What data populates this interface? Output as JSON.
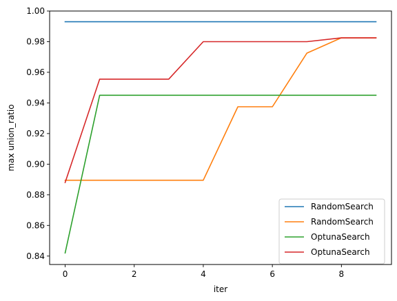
{
  "chart_data": {
    "type": "line",
    "title": "",
    "xlabel": "iter",
    "ylabel": "max union_ratio",
    "xlim": [
      -0.45,
      9.45
    ],
    "ylim": [
      0.8345,
      1.0
    ],
    "x_ticks": [
      0,
      2,
      4,
      6,
      8
    ],
    "y_ticks": [
      0.84,
      0.86,
      0.88,
      0.9,
      0.92,
      0.94,
      0.96,
      0.98,
      1.0
    ],
    "grid": false,
    "legend_position": "lower right",
    "x": [
      0,
      1,
      2,
      3,
      4,
      5,
      6,
      7,
      8,
      9
    ],
    "series": [
      {
        "name": "RandomSearch",
        "color": "#1f77b4",
        "values": [
          0.993,
          0.993,
          0.993,
          0.993,
          0.993,
          0.993,
          0.993,
          0.993,
          0.993,
          0.993
        ]
      },
      {
        "name": "RandomSearch",
        "color": "#ff7f0e",
        "values": [
          0.8895,
          0.8895,
          0.8895,
          0.8895,
          0.8895,
          0.9375,
          0.9375,
          0.9725,
          0.9825,
          0.9825
        ]
      },
      {
        "name": "OptunaSearch",
        "color": "#2ca02c",
        "values": [
          0.842,
          0.945,
          0.945,
          0.945,
          0.945,
          0.945,
          0.945,
          0.945,
          0.945,
          0.945
        ]
      },
      {
        "name": "OptunaSearch",
        "color": "#d62728",
        "values": [
          0.888,
          0.9555,
          0.9555,
          0.9555,
          0.98,
          0.98,
          0.98,
          0.98,
          0.9825,
          0.9825
        ]
      }
    ]
  }
}
